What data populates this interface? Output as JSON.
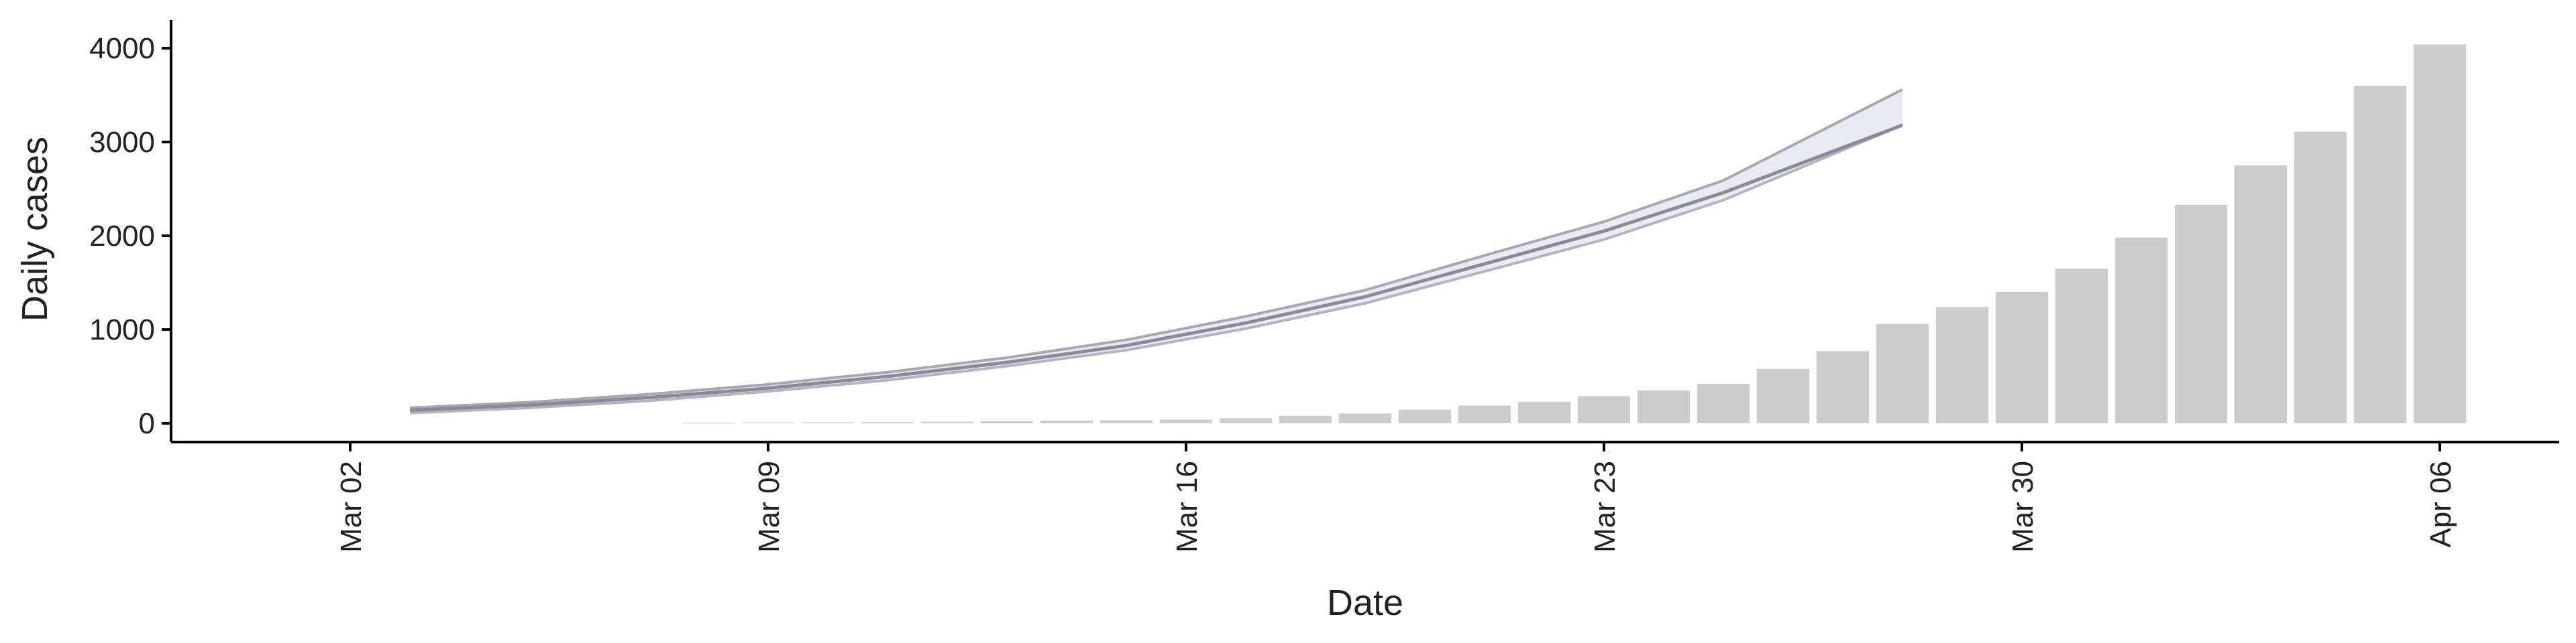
{
  "chart_data": {
    "type": "bar",
    "title": "",
    "xlabel": "Date",
    "ylabel": "Daily cases",
    "x_tick_labels": [
      "Mar 02",
      "Mar 09",
      "Mar 16",
      "Mar 23",
      "Mar 30",
      "Apr 06"
    ],
    "x_tick_dates": [
      "2020-03-02",
      "2020-03-09",
      "2020-03-16",
      "2020-03-23",
      "2020-03-30",
      "2020-04-06"
    ],
    "xlim": [
      "2020-02-28",
      "2020-04-08"
    ],
    "y_ticks": [
      0,
      1000,
      2000,
      3000,
      4000
    ],
    "ylim": [
      -200,
      4300
    ],
    "grid": false,
    "legend": "none",
    "bar_color": "#cccccc",
    "band_color": "#e6e6ef",
    "line_color": "#8a8a98",
    "bars": {
      "dates": [
        "2020-03-08",
        "2020-03-09",
        "2020-03-10",
        "2020-03-11",
        "2020-03-12",
        "2020-03-13",
        "2020-03-14",
        "2020-03-15",
        "2020-03-16",
        "2020-03-17",
        "2020-03-18",
        "2020-03-19",
        "2020-03-20",
        "2020-03-21",
        "2020-03-22",
        "2020-03-23",
        "2020-03-24",
        "2020-03-25",
        "2020-03-26",
        "2020-03-27",
        "2020-03-28",
        "2020-03-29",
        "2020-03-30",
        "2020-03-31",
        "2020-04-01",
        "2020-04-02",
        "2020-04-03",
        "2020-04-04",
        "2020-04-05",
        "2020-04-06"
      ],
      "values": [
        4,
        8,
        10,
        13,
        17,
        22,
        28,
        33,
        40,
        55,
        80,
        105,
        145,
        190,
        230,
        290,
        350,
        420,
        580,
        770,
        1060,
        1240,
        1400,
        1650,
        1980,
        2330,
        2750,
        3110,
        3600,
        4040
      ]
    },
    "series": [
      {
        "kind": "line",
        "dates": [
          "2020-03-03",
          "2020-03-05",
          "2020-03-07",
          "2020-03-09",
          "2020-03-11",
          "2020-03-13",
          "2020-03-15",
          "2020-03-17",
          "2020-03-19",
          "2020-03-21",
          "2020-03-23",
          "2020-03-25",
          "2020-03-28"
        ],
        "values": [
          140,
          195,
          275,
          375,
          500,
          650,
          830,
          1070,
          1350,
          1700,
          2050,
          2460,
          3180
        ]
      },
      {
        "kind": "band",
        "dates": [
          "2020-03-03",
          "2020-03-05",
          "2020-03-07",
          "2020-03-09",
          "2020-03-11",
          "2020-03-13",
          "2020-03-15",
          "2020-03-17",
          "2020-03-19",
          "2020-03-21",
          "2020-03-23",
          "2020-03-25",
          "2020-03-28"
        ],
        "lower": [
          110,
          165,
          240,
          340,
          460,
          610,
          780,
          1010,
          1280,
          1620,
          1960,
          2380,
          3180
        ],
        "upper": [
          165,
          225,
          310,
          415,
          545,
          700,
          890,
          1140,
          1420,
          1790,
          2150,
          2590,
          3560
        ]
      }
    ]
  }
}
